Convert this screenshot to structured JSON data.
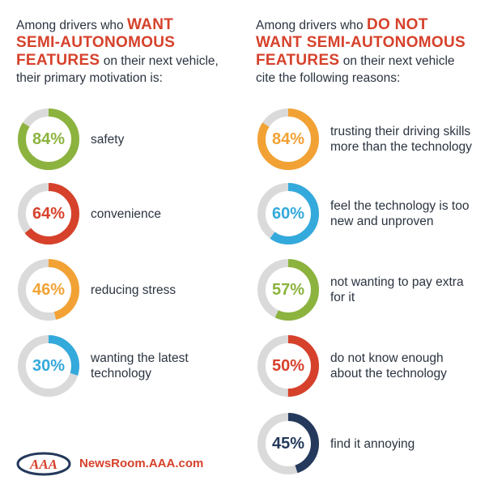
{
  "colors": {
    "heading_accent": "#d6412b",
    "text": "#2b3440",
    "track": "#dadada",
    "green": "#8cb33e",
    "red": "#d6412b",
    "orange": "#f2a234",
    "blue": "#34a9dc",
    "navy": "#24395b"
  },
  "left": {
    "heading": {
      "pre": "Among drivers who ",
      "em1": "WANT",
      "em2": "SEMI-AUTONOMOUS",
      "em3": "FEATURES",
      "post1": " on their next vehicle,",
      "post2": "their primary motivation is:"
    }
  },
  "right": {
    "heading": {
      "pre": "Among drivers who ",
      "em1": "DO NOT",
      "em2": "WANT SEMI-AUTONOMOUS",
      "em3": "FEATURES",
      "post1": " on their next vehicle",
      "post2": "cite the following reasons:"
    }
  },
  "chart_data": [
    {
      "type": "donut",
      "title": "",
      "items": [
        {
          "label": "safety",
          "value": 84,
          "display": "84%",
          "color": "#8cb33e"
        },
        {
          "label": "convenience",
          "value": 64,
          "display": "64%",
          "color": "#d6412b"
        },
        {
          "label": "reducing stress",
          "value": 46,
          "display": "46%",
          "color": "#f2a234"
        },
        {
          "label": "wanting the latest technology",
          "value": 30,
          "display": "30%",
          "color": "#34a9dc"
        }
      ]
    },
    {
      "type": "donut",
      "title": "",
      "items": [
        {
          "label": "trusting their driving skills more than the technology",
          "value": 84,
          "display": "84%",
          "color": "#f2a234"
        },
        {
          "label": "feel the technology is too new and unproven",
          "value": 60,
          "display": "60%",
          "color": "#34a9dc"
        },
        {
          "label": "not wanting to pay extra for it",
          "value": 57,
          "display": "57%",
          "color": "#8cb33e"
        },
        {
          "label": "do not know enough about the technology",
          "value": 50,
          "display": "50%",
          "color": "#d6412b"
        },
        {
          "label": "find it annoying",
          "value": 45,
          "display": "45%",
          "color": "#24395b"
        }
      ]
    }
  ],
  "footer": {
    "logo_text": "AAA",
    "site": "NewsRoom.AAA.com"
  }
}
